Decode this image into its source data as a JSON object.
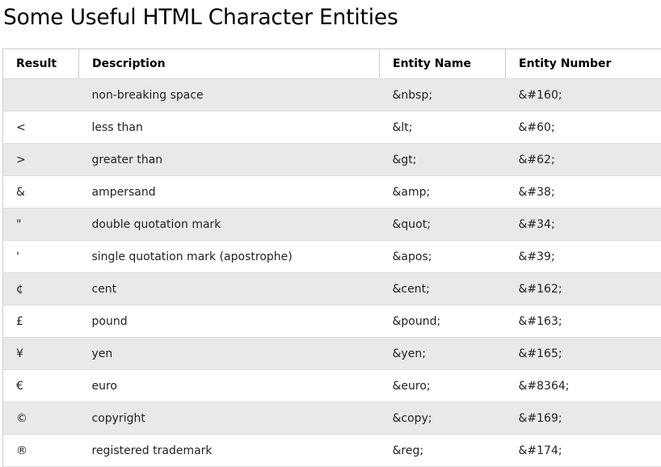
{
  "page": {
    "title": "Some Useful HTML Character Entities"
  },
  "table": {
    "headers": {
      "result": "Result",
      "description": "Description",
      "entity_name": "Entity Name",
      "entity_number": "Entity Number"
    },
    "rows": [
      {
        "result": " ",
        "description": "non-breaking space",
        "entity_name": "&nbsp;",
        "entity_number": "&#160;"
      },
      {
        "result": "<",
        "description": "less than",
        "entity_name": "&lt;",
        "entity_number": "&#60;"
      },
      {
        "result": ">",
        "description": "greater than",
        "entity_name": "&gt;",
        "entity_number": "&#62;"
      },
      {
        "result": "&",
        "description": "ampersand",
        "entity_name": "&amp;",
        "entity_number": "&#38;"
      },
      {
        "result": "\"",
        "description": "double quotation mark",
        "entity_name": "&quot;",
        "entity_number": "&#34;"
      },
      {
        "result": "'",
        "description": "single quotation mark (apostrophe)",
        "entity_name": "&apos;",
        "entity_number": "&#39;"
      },
      {
        "result": "¢",
        "description": "cent",
        "entity_name": "&cent;",
        "entity_number": "&#162;"
      },
      {
        "result": "£",
        "description": "pound",
        "entity_name": "&pound;",
        "entity_number": "&#163;"
      },
      {
        "result": "¥",
        "description": "yen",
        "entity_name": "&yen;",
        "entity_number": "&#165;"
      },
      {
        "result": "€",
        "description": "euro",
        "entity_name": "&euro;",
        "entity_number": "&#8364;"
      },
      {
        "result": "©",
        "description": "copyright",
        "entity_name": "&copy;",
        "entity_number": "&#169;"
      },
      {
        "result": "®",
        "description": "registered trademark",
        "entity_name": "&reg;",
        "entity_number": "&#174;"
      }
    ]
  }
}
